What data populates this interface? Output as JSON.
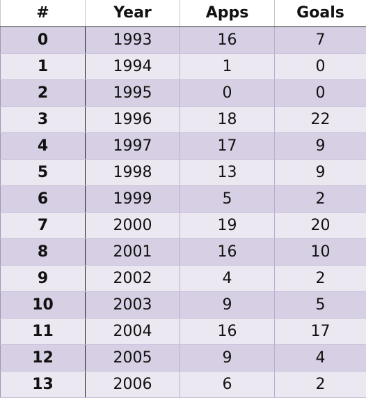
{
  "table": {
    "columns": [
      "#",
      "Year",
      "Apps",
      "Goals"
    ],
    "rows": [
      {
        "idx": "0",
        "year": "1993",
        "apps": "16",
        "goals": "7"
      },
      {
        "idx": "1",
        "year": "1994",
        "apps": "1",
        "goals": "0"
      },
      {
        "idx": "2",
        "year": "1995",
        "apps": "0",
        "goals": "0"
      },
      {
        "idx": "3",
        "year": "1996",
        "apps": "18",
        "goals": "22"
      },
      {
        "idx": "4",
        "year": "1997",
        "apps": "17",
        "goals": "9"
      },
      {
        "idx": "5",
        "year": "1998",
        "apps": "13",
        "goals": "9"
      },
      {
        "idx": "6",
        "year": "1999",
        "apps": "5",
        "goals": "2"
      },
      {
        "idx": "7",
        "year": "2000",
        "apps": "19",
        "goals": "20"
      },
      {
        "idx": "8",
        "year": "2001",
        "apps": "16",
        "goals": "10"
      },
      {
        "idx": "9",
        "year": "2002",
        "apps": "4",
        "goals": "2"
      },
      {
        "idx": "10",
        "year": "2003",
        "apps": "9",
        "goals": "5"
      },
      {
        "idx": "11",
        "year": "2004",
        "apps": "16",
        "goals": "17"
      },
      {
        "idx": "12",
        "year": "2005",
        "apps": "9",
        "goals": "4"
      },
      {
        "idx": "13",
        "year": "2006",
        "apps": "6",
        "goals": "2"
      }
    ]
  },
  "colors": {
    "row_odd": "#d7cfe3",
    "row_even": "#ece8f2",
    "header_bg": "#ffffff",
    "text": "#111111"
  }
}
